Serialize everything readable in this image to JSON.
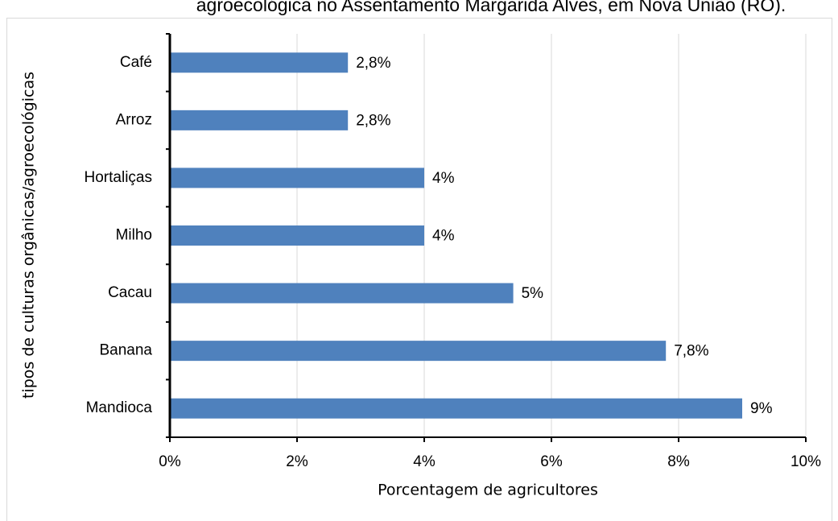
{
  "chart_data": {
    "type": "hbar",
    "title": "agroecológica no Assentamento Margarida Alves, em Nova União (RO).",
    "x_label": "Porcentagem de agricultores",
    "y_label": "tipos de culturas orgânicas/agroecológicas",
    "categories": [
      "Café",
      "Arroz",
      "Hortaliças",
      "Milho",
      "Cacau",
      "Banana",
      "Mandioca"
    ],
    "values": [
      2.8,
      2.8,
      4,
      4,
      5.4,
      7.8,
      9
    ],
    "value_labels": [
      "2,8%",
      "2,8%",
      "4%",
      "4%",
      "5%",
      "7,8%",
      "9%"
    ],
    "color": "#4f81bd",
    "xlim": [
      0,
      10
    ],
    "xticks": [
      {
        "value": 0,
        "label": "0%"
      },
      {
        "value": 2,
        "label": "2%"
      },
      {
        "value": 4,
        "label": "4%"
      },
      {
        "value": 6,
        "label": "6%"
      },
      {
        "value": 8,
        "label": "8%"
      },
      {
        "value": 10,
        "label": "10%"
      }
    ],
    "grid": true
  }
}
